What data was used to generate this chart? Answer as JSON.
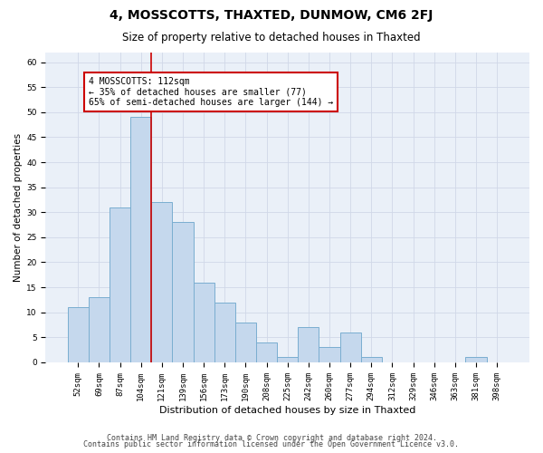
{
  "title": "4, MOSSCOTTS, THAXTED, DUNMOW, CM6 2FJ",
  "subtitle": "Size of property relative to detached houses in Thaxted",
  "xlabel": "Distribution of detached houses by size in Thaxted",
  "ylabel": "Number of detached properties",
  "categories": [
    "52sqm",
    "69sqm",
    "87sqm",
    "104sqm",
    "121sqm",
    "139sqm",
    "156sqm",
    "173sqm",
    "190sqm",
    "208sqm",
    "225sqm",
    "242sqm",
    "260sqm",
    "277sqm",
    "294sqm",
    "312sqm",
    "329sqm",
    "346sqm",
    "363sqm",
    "381sqm",
    "398sqm"
  ],
  "values": [
    11,
    13,
    31,
    49,
    32,
    28,
    16,
    12,
    8,
    4,
    1,
    7,
    3,
    6,
    1,
    0,
    0,
    0,
    0,
    1,
    0
  ],
  "bar_color": "#c5d8ed",
  "bar_edge_color": "#7aaed0",
  "vline_x_bar_index": 3.5,
  "vline_color": "#cc0000",
  "annotation_line1": "4 MOSSCOTTS: 112sqm",
  "annotation_line2": "← 35% of detached houses are smaller (77)",
  "annotation_line3": "65% of semi-detached houses are larger (144) →",
  "annotation_box_color": "#ffffff",
  "annotation_box_edge": "#cc0000",
  "ylim": [
    0,
    62
  ],
  "yticks": [
    0,
    5,
    10,
    15,
    20,
    25,
    30,
    35,
    40,
    45,
    50,
    55,
    60
  ],
  "grid_color": "#d0d8e8",
  "bg_color": "#eaf0f8",
  "footer1": "Contains HM Land Registry data © Crown copyright and database right 2024.",
  "footer2": "Contains public sector information licensed under the Open Government Licence v3.0.",
  "title_fontsize": 10,
  "subtitle_fontsize": 8.5,
  "ylabel_fontsize": 7.5,
  "xlabel_fontsize": 8,
  "tick_fontsize": 6.5,
  "annotation_fontsize": 7,
  "footer_fontsize": 6
}
